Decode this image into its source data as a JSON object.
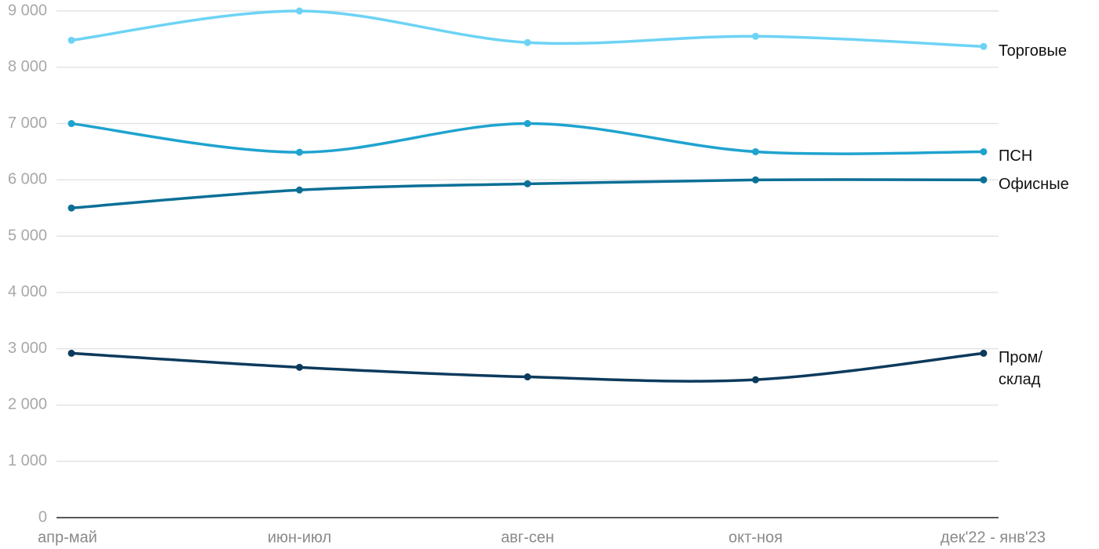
{
  "chart_data": {
    "type": "line",
    "categories": [
      "апр-май",
      "июн-июл",
      "авг-сен",
      "окт-ноя",
      "дек'22 - янв'23"
    ],
    "series": [
      {
        "name": "Торговые",
        "color": "#6dd3f5",
        "values": [
          8480,
          9000,
          8440,
          8550,
          8370
        ]
      },
      {
        "name": "ПСН",
        "color": "#1fa3cf",
        "values": [
          7000,
          6490,
          7000,
          6500,
          6500
        ]
      },
      {
        "name": "Офисные",
        "color": "#0b6f96",
        "values": [
          5500,
          5820,
          5930,
          6000,
          6000
        ]
      },
      {
        "name": "Пром/ склад",
        "color": "#0d3a5c",
        "values": [
          2920,
          2670,
          2500,
          2450,
          2920
        ]
      }
    ],
    "ylim": [
      0,
      9000
    ],
    "yticks": [
      0,
      {
        "value": 1000,
        "label": "1 000"
      },
      {
        "value": 2000,
        "label": "2 000"
      },
      {
        "value": 3000,
        "label": "3 000"
      },
      {
        "value": 4000,
        "label": "4 000"
      },
      {
        "value": 5000,
        "label": "5 000"
      },
      {
        "value": 6000,
        "label": "6 000"
      },
      {
        "value": 7000,
        "label": "7 000"
      },
      {
        "value": 8000,
        "label": "8 000"
      },
      {
        "value": 9000,
        "label": "9 000"
      }
    ],
    "grid": true
  }
}
